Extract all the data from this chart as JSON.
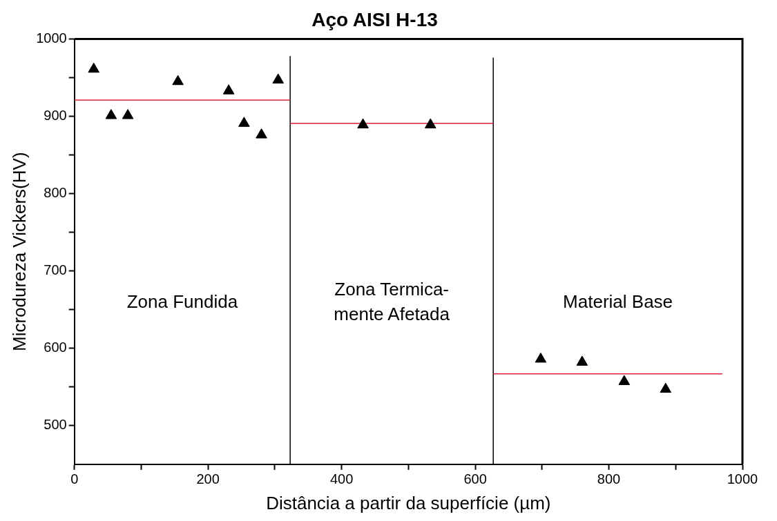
{
  "chart_data": {
    "type": "scatter",
    "title": "Aço AISI H-13",
    "xlabel": "Distância a partir da superfície (µm)",
    "ylabel": "Microdureza Vickers(HV)",
    "xlim": [
      0,
      1000
    ],
    "ylim": [
      450,
      1000
    ],
    "xticks": [
      0,
      {
        "value": 100,
        "label": null
      },
      200,
      {
        "value": 300,
        "label": null
      },
      400,
      {
        "value": 500,
        "label": null
      },
      600,
      {
        "value": 700,
        "label": null
      },
      800,
      {
        "value": 900,
        "label": null
      },
      1000
    ],
    "yticks": [
      500,
      {
        "value": 550,
        "label": null
      },
      600,
      {
        "value": 650,
        "label": null
      },
      700,
      {
        "value": 750,
        "label": null
      },
      800,
      {
        "value": 850,
        "label": null
      },
      900,
      {
        "value": 950,
        "label": null
      },
      1000
    ],
    "grid": false,
    "legend": false,
    "marker": "triangle",
    "series": [
      {
        "color": "#000000",
        "x": [
          29,
          55,
          80,
          155,
          231,
          254,
          280,
          305,
          432,
          533,
          698,
          760,
          823,
          885
        ],
        "values": [
          961,
          901,
          901,
          945,
          933,
          891,
          876,
          947,
          889,
          889,
          586,
          582,
          557,
          547
        ]
      },
      {
        "type": "line",
        "color": "#e0203a",
        "marker": "none",
        "x": [
          0,
          323
        ],
        "values": [
          921,
          921
        ]
      },
      {
        "type": "line",
        "color": "#e0203a",
        "marker": "none",
        "x": [
          323,
          627
        ],
        "values": [
          891,
          891
        ]
      },
      {
        "type": "line",
        "color": "#e0203a",
        "marker": "none",
        "x": [
          627,
          970
        ],
        "values": [
          567,
          567
        ]
      },
      {
        "type": "line",
        "color": "#000000",
        "marker": "none",
        "x": [
          323,
          323
        ],
        "values": [
          450,
          978
        ]
      },
      {
        "type": "line",
        "color": "#000000",
        "marker": "none",
        "x": [
          627,
          627
        ],
        "values": [
          450,
          976
        ]
      }
    ],
    "annotations": [
      "Zona Fundida",
      "Zona Termica-\nmente Afetada",
      "Material Base"
    ]
  }
}
